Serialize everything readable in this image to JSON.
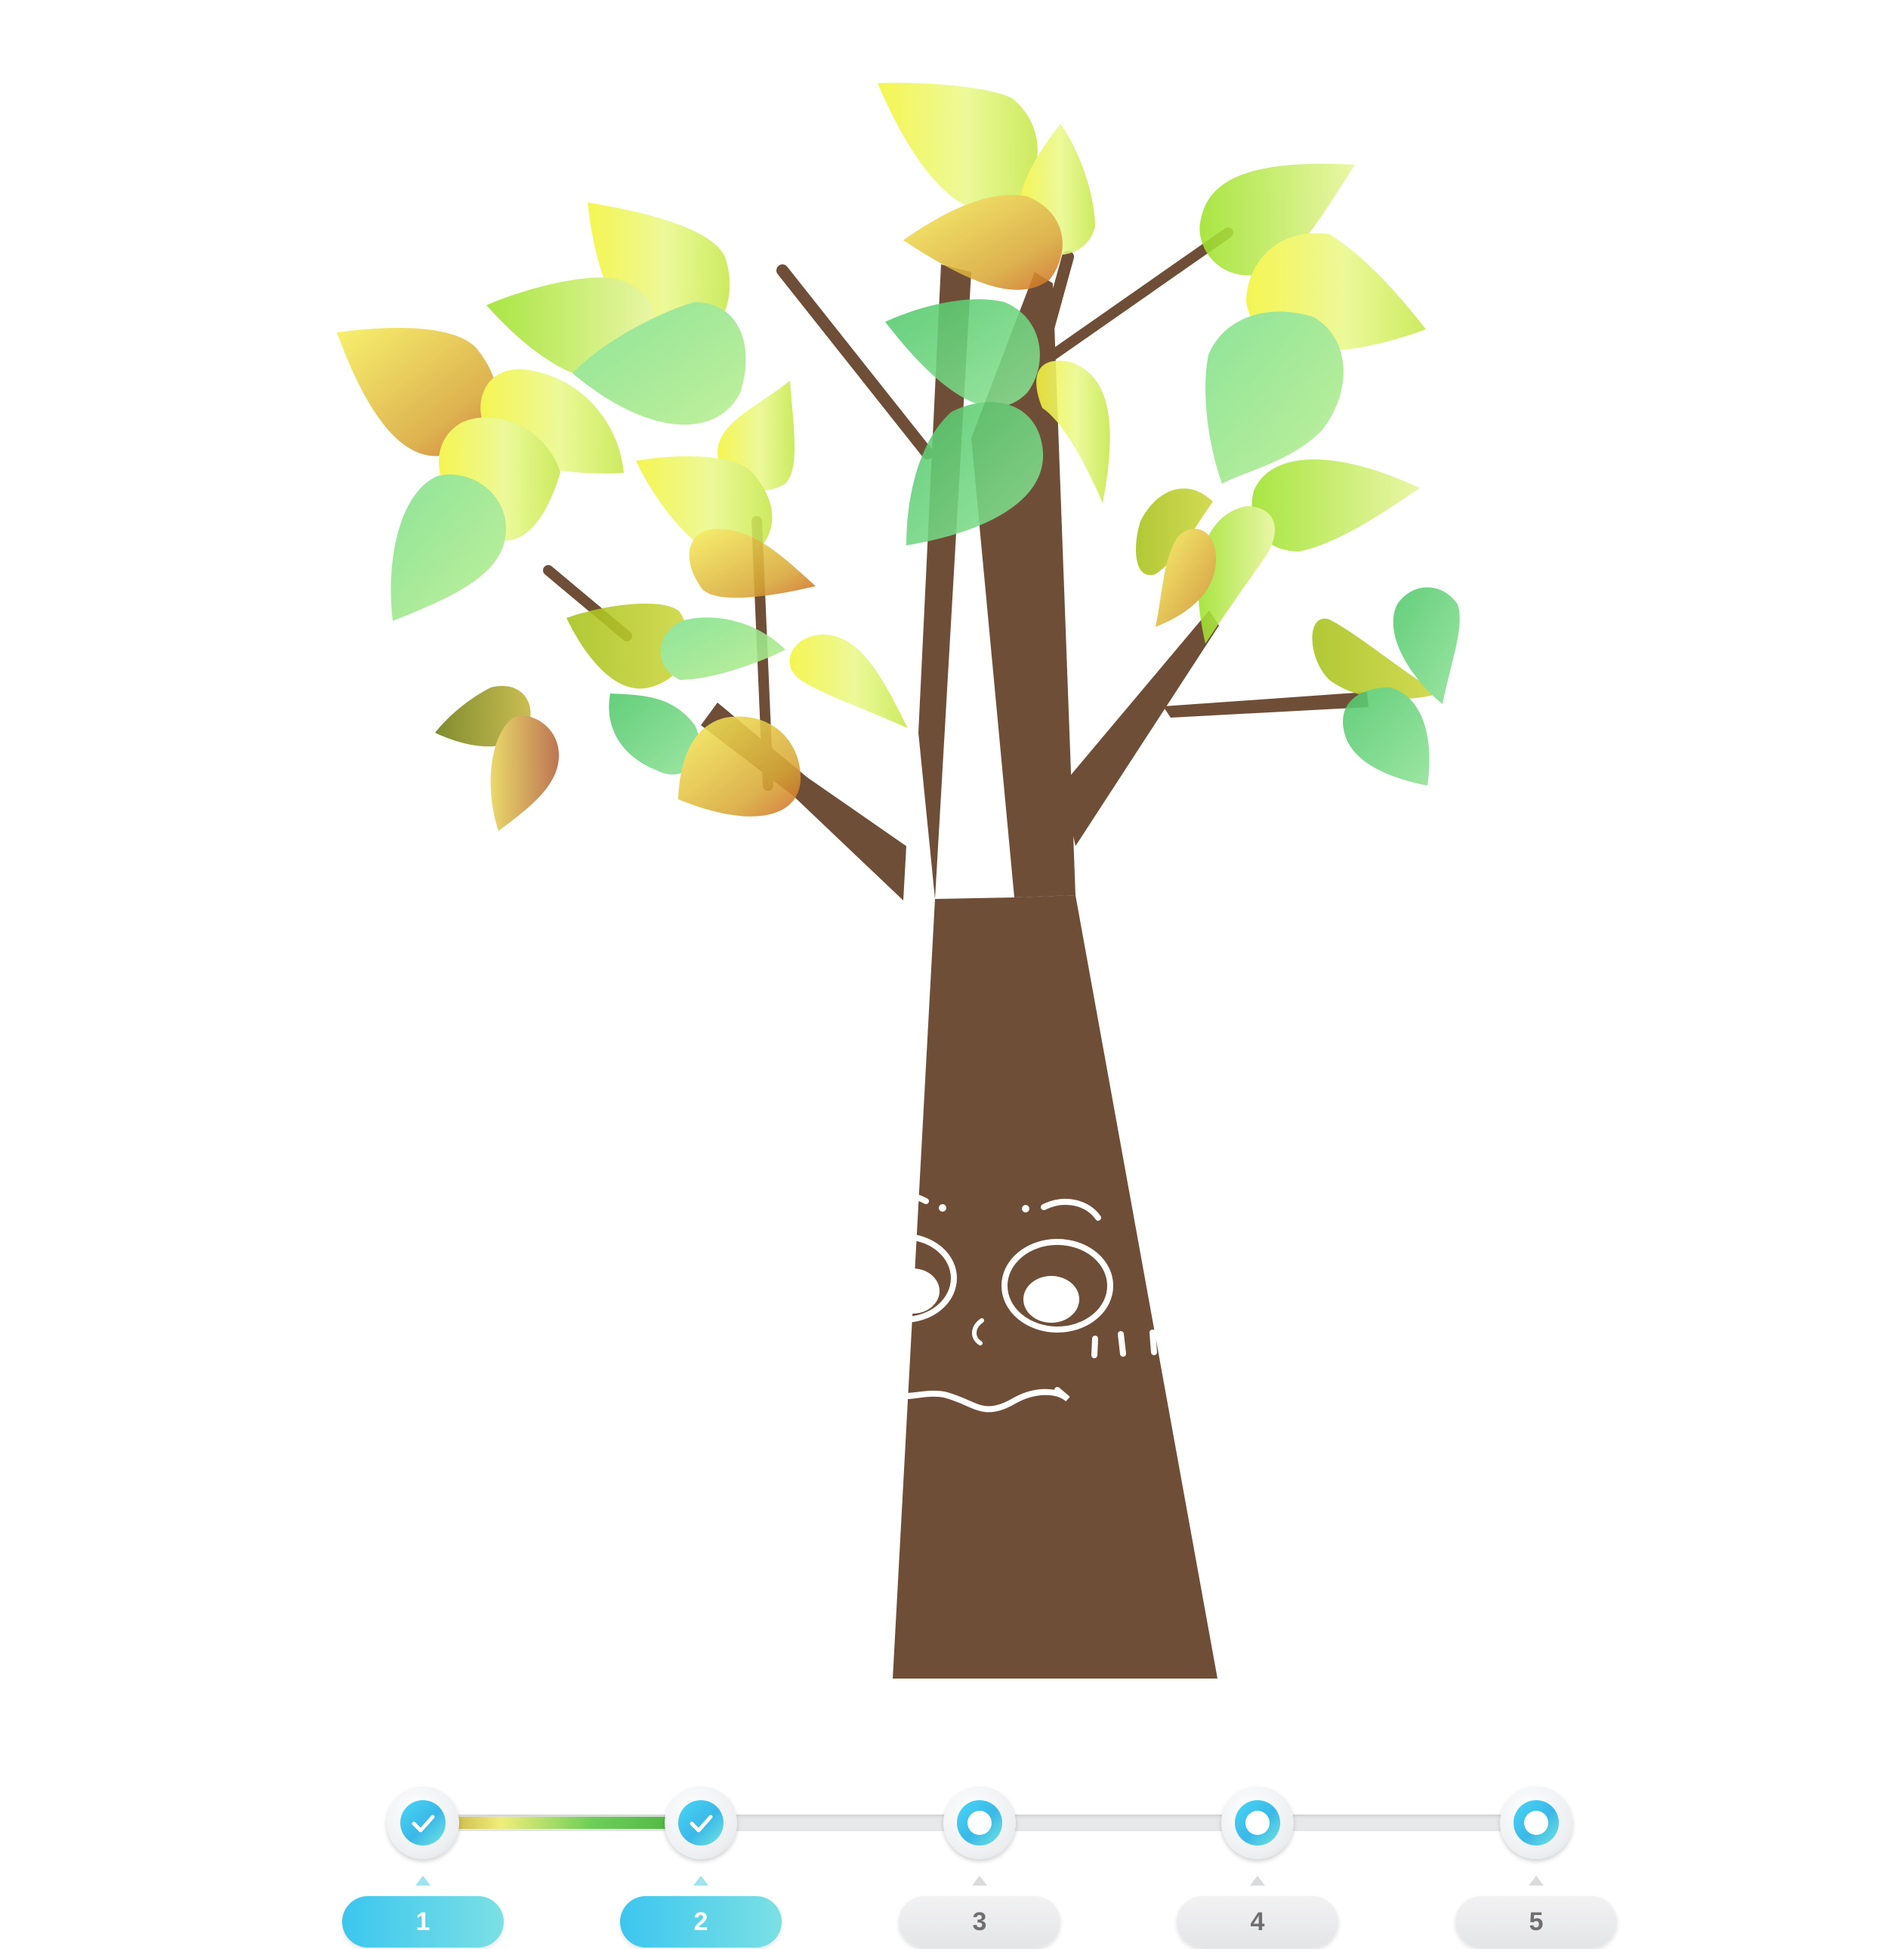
{
  "colors": {
    "trunk": "#6f4e37",
    "face": "#ffffff",
    "accent": "#3cc6ef",
    "pill_inactive": "#e4e5e7"
  },
  "stepper": {
    "current_step": 2,
    "steps": [
      {
        "label": "1",
        "status": "completed",
        "icon": "check-icon"
      },
      {
        "label": "2",
        "status": "completed",
        "icon": "check-icon"
      },
      {
        "label": "3",
        "status": "pending",
        "icon": "ring-icon"
      },
      {
        "label": "4",
        "status": "pending",
        "icon": "ring-icon"
      },
      {
        "label": "5",
        "status": "pending",
        "icon": "ring-icon"
      }
    ]
  }
}
